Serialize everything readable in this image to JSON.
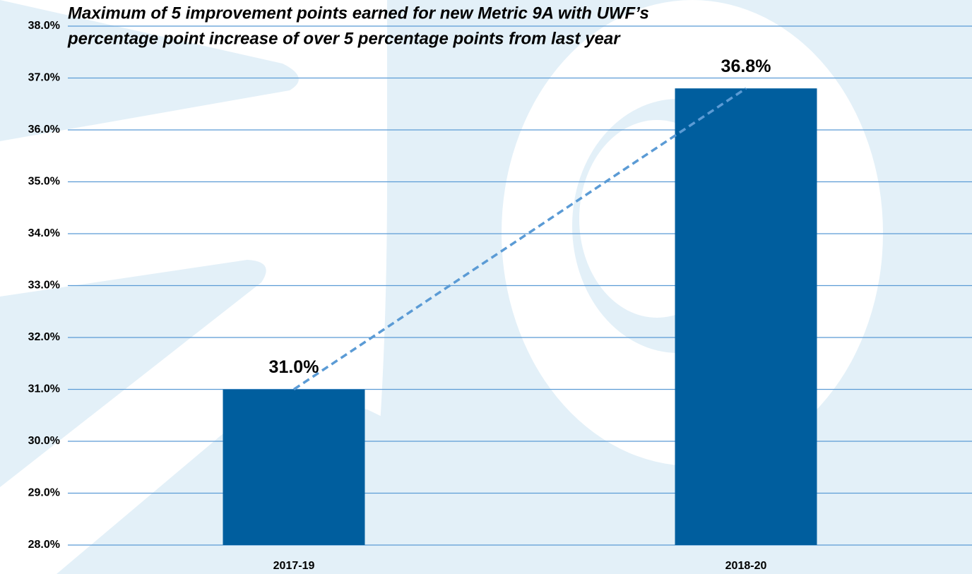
{
  "chart_data": {
    "type": "bar",
    "title": [
      "Maximum of 5 improvement points earned for new Metric 9A with UWF’s",
      "percentage point increase of over 5 percentage points from last year"
    ],
    "categories": [
      "2017-19",
      "2018-20"
    ],
    "values": [
      31.0,
      36.8
    ],
    "value_labels": [
      "31.0%",
      "36.8%"
    ],
    "color": "#005e9e",
    "ylim": [
      28,
      38
    ],
    "yticks": [
      {
        "value": 28,
        "label": "28.0%"
      },
      {
        "value": 29,
        "label": "29.0%"
      },
      {
        "value": 30,
        "label": "30.0%"
      },
      {
        "value": 31,
        "label": "31.0%"
      },
      {
        "value": 32,
        "label": "32.0%"
      },
      {
        "value": 33,
        "label": "33.0%"
      },
      {
        "value": 34,
        "label": "34.0%"
      },
      {
        "value": 35,
        "label": "35.0%"
      },
      {
        "value": 36,
        "label": "36.0%"
      },
      {
        "value": 37,
        "label": "37.0%"
      },
      {
        "value": 38,
        "label": "38.0%"
      }
    ],
    "grid": true,
    "trendline": true
  }
}
